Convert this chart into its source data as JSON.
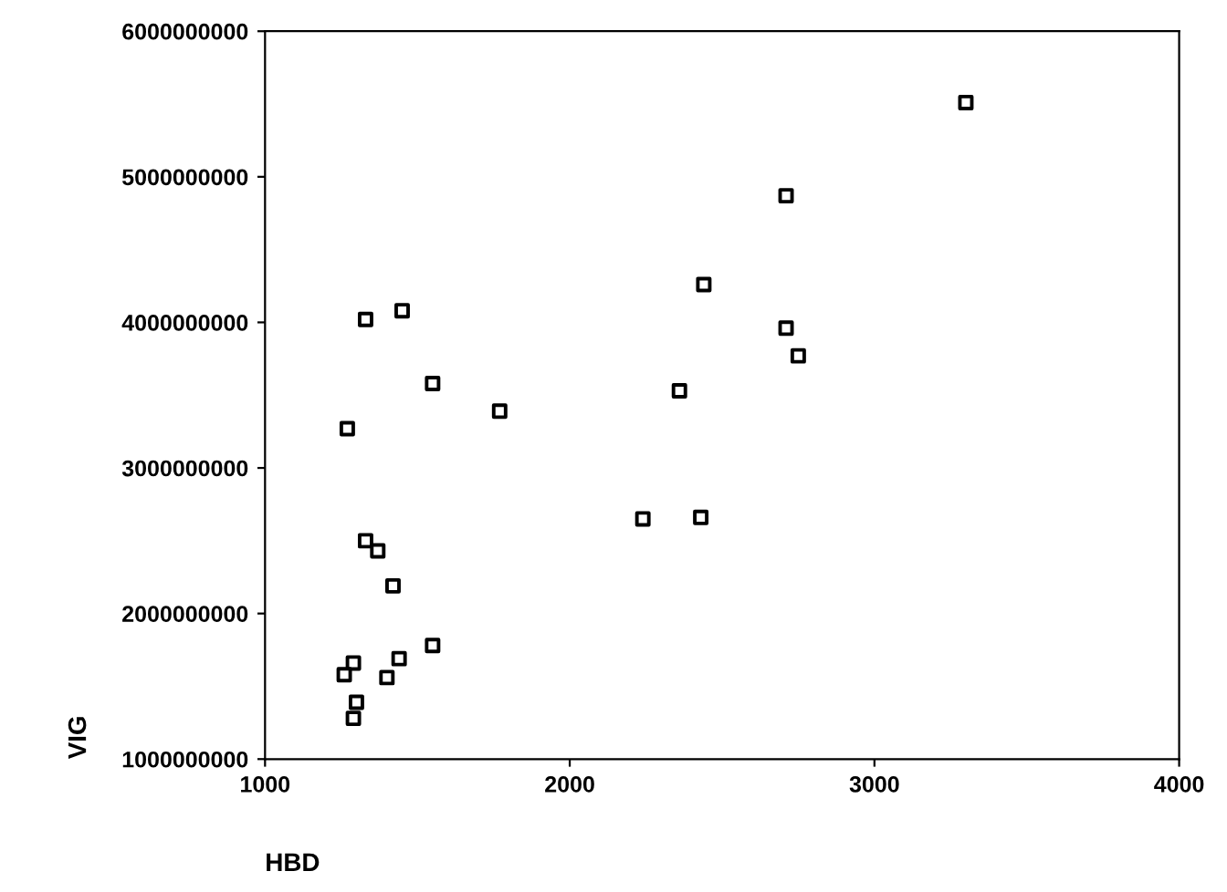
{
  "chart_data": {
    "type": "scatter",
    "xlabel": "HBD",
    "ylabel": "VIG",
    "marker": "square",
    "grid": false,
    "xlim": [
      1000,
      4000
    ],
    "xticks": [
      1000,
      2000,
      3000,
      4000
    ],
    "ylim": [
      1000000000,
      6000000000
    ],
    "yticks": [
      1000000000,
      2000000000,
      3000000000,
      4000000000,
      5000000000,
      6000000000
    ],
    "series": [
      {
        "color": "#000000",
        "x": [
          3300,
          2710,
          2440,
          2710,
          2750,
          2360,
          1770,
          2240,
          2430,
          1330,
          1450,
          1550,
          1270,
          1330,
          1370,
          1420,
          1550,
          1440,
          1290,
          1260,
          1400,
          1300,
          1290
        ],
        "values": [
          5510000000,
          4870000000,
          4260000000,
          3960000000,
          3770000000,
          3530000000,
          3390000000,
          2650000000,
          2660000000,
          4020000000,
          4080000000,
          3580000000,
          3270000000,
          2500000000,
          2430000000,
          2190000000,
          1780000000,
          1690000000,
          1660000000,
          1580000000,
          1560000000,
          1390000000,
          1280000000
        ]
      }
    ]
  }
}
